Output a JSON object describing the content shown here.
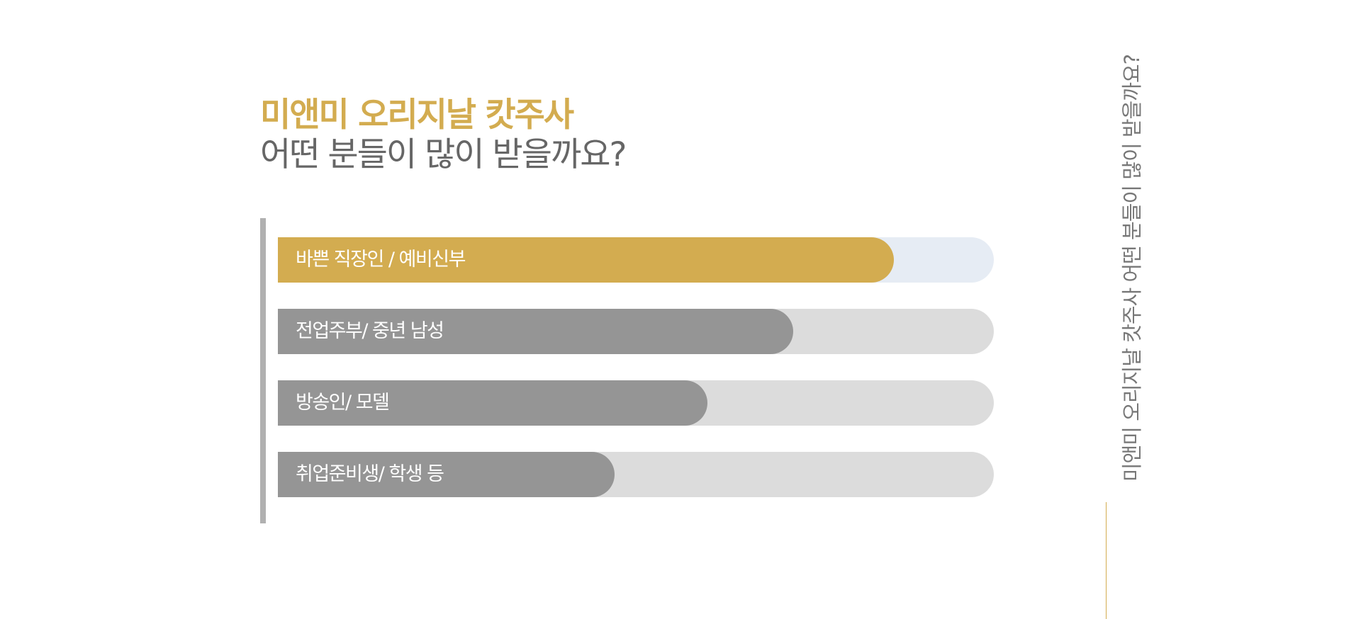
{
  "title": {
    "highlight": "미앤미 오리지날 캇주사",
    "question": "어떤 분들이 많이 받을까요?"
  },
  "side_caption": "미앤미 오리지날 캇주사 어떤 분들이 많이 받을까요?",
  "colors": {
    "accent": "#d3ac50",
    "accent_track": "#e6ecf4",
    "gray_fill": "#959595",
    "gray_track": "#dcdcdc",
    "axis": "#b0b0b0",
    "side_line": "#d3ac50"
  },
  "chart_data": {
    "type": "bar",
    "orientation": "horizontal",
    "categories": [
      "바쁜 직장인 / 예비신부",
      "전업주부/ 중년 남성",
      "방송인/ 모델",
      "취업준비생/ 학생 등"
    ],
    "values": [
      86,
      72,
      60,
      47
    ],
    "xlim": [
      0,
      100
    ],
    "highlight_index": 0,
    "grid": false
  }
}
